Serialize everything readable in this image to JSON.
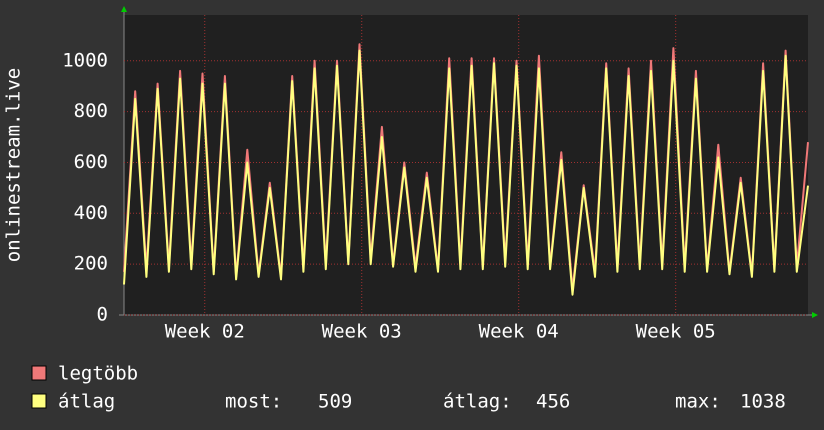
{
  "chart_data": {
    "type": "line",
    "y_label": "onlinestream.live",
    "x": [
      0,
      0.5,
      1,
      1.5,
      2,
      2.5,
      3,
      3.5,
      4,
      4.5,
      5,
      5.5,
      6,
      6.5,
      7,
      7.5,
      8,
      8.5,
      9,
      9.5,
      10,
      10.5,
      11,
      11.5,
      12,
      12.5,
      13,
      13.5,
      14,
      14.5,
      15,
      15.5,
      16,
      16.5,
      17,
      17.5,
      18,
      18.5,
      19,
      19.5,
      20,
      20.5,
      21,
      21.5,
      22,
      22.5,
      23,
      23.5,
      24,
      24.5,
      25,
      25.5,
      26,
      26.5,
      27,
      27.5,
      28,
      28.5,
      29,
      29.5,
      30,
      30.5
    ],
    "xlim": [
      0,
      30.5
    ],
    "xticks": [
      {
        "value": 3.6,
        "label": "Week 02"
      },
      {
        "value": 10.6,
        "label": "Week 03"
      },
      {
        "value": 17.6,
        "label": "Week 04"
      },
      {
        "value": 24.6,
        "label": "Week 05"
      }
    ],
    "ylim": [
      0,
      1180
    ],
    "yticks": [
      0,
      200,
      400,
      600,
      800,
      1000
    ],
    "grid": true,
    "series": [
      {
        "name": "legtöbb",
        "color": "#f07878",
        "values": [
          170,
          880,
          180,
          910,
          190,
          960,
          200,
          950,
          170,
          940,
          150,
          650,
          160,
          520,
          150,
          940,
          190,
          1000,
          200,
          1000,
          210,
          1065,
          220,
          740,
          200,
          600,
          190,
          560,
          180,
          1010,
          200,
          1010,
          190,
          1010,
          210,
          1000,
          200,
          1020,
          190,
          640,
          100,
          510,
          170,
          990,
          190,
          970,
          200,
          1000,
          200,
          1050,
          190,
          960,
          180,
          670,
          170,
          540,
          160,
          990,
          180,
          1040,
          190,
          680
        ]
      },
      {
        "name": "átlag",
        "color": "#ffff80",
        "values": [
          120,
          850,
          150,
          890,
          170,
          930,
          180,
          910,
          160,
          910,
          140,
          600,
          150,
          500,
          140,
          920,
          170,
          970,
          180,
          980,
          200,
          1040,
          200,
          700,
          190,
          580,
          170,
          540,
          170,
          970,
          180,
          980,
          180,
          990,
          190,
          980,
          180,
          970,
          180,
          610,
          80,
          500,
          150,
          970,
          170,
          940,
          180,
          960,
          180,
          1000,
          170,
          930,
          170,
          620,
          160,
          520,
          150,
          960,
          170,
          1020,
          170,
          509
        ]
      }
    ],
    "stats": [
      {
        "label": "most:",
        "value": 509
      },
      {
        "label": "átlag:",
        "value": 456
      },
      {
        "label": "max:",
        "value": 1038
      }
    ]
  }
}
